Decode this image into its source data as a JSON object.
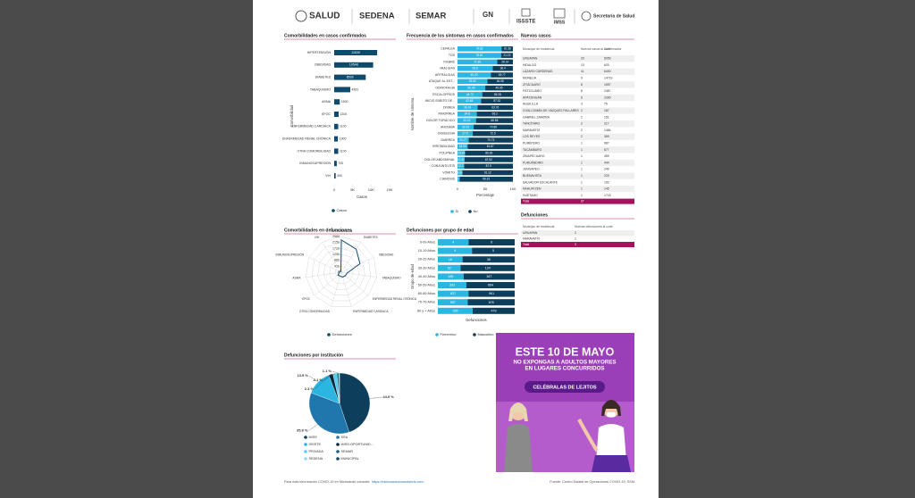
{
  "header": {
    "logos": [
      "SALUD",
      "SEDENA",
      "SEMAR",
      "GN",
      "ISSSTE",
      "IMSS",
      "Secretaría de Salud"
    ]
  },
  "chart_data": [
    {
      "type": "hbar",
      "title": "Comorbilidades en casos confirmados",
      "x_label": "Casos",
      "y_label": "Comorbilidad",
      "categories": [
        "HIPERTENSIÓN",
        "OBESIDAD",
        "DIABETES",
        "TABAQUISMO",
        "ASMA",
        "EPOC",
        "ENFERMEDAD CARDÍACA",
        "ENFERMEDAD RENAL CRÓNICA",
        "OTRA COMORBILIDAD",
        "INMUNOSUPRESIÓN",
        "VIH"
      ],
      "series": [
        {
          "name": "Casos",
          "color": "#0e4a6b",
          "values": [
            11639,
            10548,
            8539,
            4351,
            1500,
            1200,
            1100,
            1000,
            1100,
            700,
            400
          ]
        }
      ],
      "xlim": [
        0,
        15000
      ],
      "xticks": [
        0,
        {
          "value": 5000,
          "label": "5K"
        },
        {
          "value": 10000,
          "label": "10K"
        },
        {
          "value": 15000,
          "label": "15K"
        }
      ]
    },
    {
      "type": "stacked_hbar",
      "title": "Frecuencia de los síntomas en casos confirmados",
      "x_label": "Porcentaje",
      "y_label": "Nombre de síntoma",
      "categories": [
        "CEFALEA",
        "TOS",
        "FIEBRE",
        "MIALGIAS",
        "ARTRALGIAS",
        "ATAQUE AL EST...",
        "ODINOFAGIA",
        "ESCALOFRÍOS",
        "INICIO SÚBITO DE...",
        "DISNEA",
        "RINORREA",
        "DOLOR TORÁCICO",
        "ANOSMIA",
        "DISGEUSIA",
        "DIARREA",
        "IRRITABILIDAD",
        "POLIPNEA",
        "DOLOR ABDOMINAL",
        "CONJUNTIVITIS",
        "VÓMITO",
        "CIANOSIS"
      ],
      "series": [
        {
          "name": "Sí",
          "color": "#2bb6e2",
          "values": [
            79.62,
            78.81,
            71.81,
            63.6,
            60.23,
            53.92,
            50.05,
            44.72,
            42.68,
            36.24,
            34.8,
            33.42,
            29.15,
            27.5,
            20.27,
            18.33,
            13.64,
            12.48,
            12.1,
            8.88,
            3.77
          ]
        },
        {
          "name": "No",
          "color": "#0d3e5c",
          "values": [
            20.38,
            21.19,
            28.19,
            36.4,
            39.77,
            46.08,
            49.95,
            55.28,
            57.32,
            63.76,
            65.2,
            66.58,
            70.85,
            72.5,
            79.73,
            81.67,
            86.36,
            87.52,
            87.9,
            91.12,
            96.23
          ]
        }
      ],
      "xlim": [
        0,
        100
      ],
      "xticks": [
        0,
        50,
        100
      ]
    },
    {
      "type": "radar",
      "title": "Comorbilidades en defunciones",
      "categories": [
        "HIPERTENSIÓN",
        "DIABETES",
        "OBESIDAD",
        "TABAQUISMO",
        "ENFERMEDAD RENAL CRÓNICA",
        "ENFERMEDAD CARDÍACA",
        "OTRA COMORBILIDAD",
        "EPOC",
        "ASMA",
        "INMUNOSUPRESIÓN",
        "VIH"
      ],
      "series": [
        {
          "name": "Defunciones",
          "color": "#0e4a6b",
          "values": [
            2330,
            1980,
            1480,
            420,
            380,
            360,
            300,
            320,
            150,
            170,
            60
          ]
        }
      ],
      "rlim": [
        0,
        2580
      ],
      "rticks": [
        0,
        430,
        860,
        1290,
        1720,
        2150,
        2580
      ]
    },
    {
      "type": "stacked_hbar_share",
      "title": "Defunciones por grupo de edad",
      "x_label": "Defunciones",
      "y_label": "Grupo de edad",
      "categories": [
        "0-09 Años",
        "10-19 Años",
        "20-29 Años",
        "30-39 Años",
        "40-49 Años",
        "50-59 Años",
        "60-69 Años",
        "70-79 Años",
        "80 y + Años"
      ],
      "series": [
        {
          "name": "Femenino",
          "color": "#2bb6e2",
          "values": [
            4,
            4,
            18,
            52,
            185,
            393,
            637,
            557,
            396
          ]
        },
        {
          "name": "Masculino",
          "color": "#0d3e5c",
          "values": [
            6,
            5,
            38,
            124,
            367,
            664,
            961,
            876,
            479
          ]
        }
      ]
    },
    {
      "type": "pie",
      "title": "Defunciones por institución",
      "categories": [
        "IMSS",
        "SSA",
        "ISSSTE",
        "IMSS-OPORTUNID...",
        "PRIVADA",
        "SEMAR",
        "SEDENA",
        "MUNICIPAL"
      ],
      "values": [
        44.9,
        35.8,
        13.5,
        2.3,
        2.1,
        1.1,
        0.2,
        0.1
      ],
      "value_labels": [
        "44.9 %",
        "35.8 %",
        "13.5 %",
        "2.3 %",
        "2.1 %",
        "1.1 %",
        null,
        null
      ],
      "colors": [
        "#0d3e5c",
        "#1f77ad",
        "#2bb6e2",
        "#082a40",
        "#59cbea",
        "#176383",
        "#8fdcf2",
        "#114b69"
      ]
    }
  ],
  "tables": [
    {
      "title": "Nuevos casos",
      "columns": [
        "Municipio de residencia",
        "Nuevos casos al corte",
        "Confirmados"
      ],
      "rows": [
        [
          "URUAPAN",
          20,
          5059
        ],
        [
          "HIDALGO",
          13,
          620
        ],
        [
          "LÁZARO CÁRDENAS",
          11,
          6430
        ],
        [
          "MORELIA",
          9,
          14719
        ],
        [
          "ZITÁCUARO",
          8,
          1557
        ],
        [
          "PÁTZCUARO",
          8,
          2487
        ],
        [
          "APATZINGÁN",
          6,
          2390
        ],
        [
          "AGUILILLA",
          3,
          75
        ],
        [
          "COALCOMÁN DE VÁZQUEZ PALLARES",
          2,
          187
        ],
        [
          "GABRIEL ZAMORA",
          2,
          151
        ],
        [
          "TANCÍTARO",
          2,
          217
        ],
        [
          "MARAVATÍO",
          2,
          1484
        ],
        [
          "LOS REYES",
          2,
          359
        ],
        [
          "PURÉPERO",
          1,
          987
        ],
        [
          "TACÁMBARO",
          1,
          677
        ],
        [
          "ZINAPÉCUARO",
          1,
          459
        ],
        [
          "PURUÁNDIRO",
          1,
          444
        ],
        [
          "JUNGAPEO",
          1,
          249
        ],
        [
          "BUENAVISTA",
          1,
          229
        ],
        [
          "SALVADOR ESCALANTE",
          1,
          192
        ],
        [
          "NAHUATZEN",
          1,
          145
        ],
        [
          "HUETAMO",
          1,
          1718
        ]
      ],
      "total": {
        "label": "Total",
        "value": 97
      }
    },
    {
      "title": "Defunciones",
      "columns": [
        "Municipio de residencia",
        "Nuevas defunciones al corte"
      ],
      "rows": [
        [
          "URUAPAN",
          2
        ],
        [
          "MARAVATÍO",
          1
        ]
      ],
      "total": {
        "label": "Total",
        "value": 3
      }
    }
  ],
  "banner": {
    "title": "ESTE 10 DE MAYO",
    "line1": "NO EXPONGAS A ADULTOS MAYORES",
    "line2": "EN LUGARES CONCURRIDOS",
    "button": "CELÉBRALAS DE LEJITOS"
  },
  "footer": {
    "text": "Para más información COVID-19 en Michoacán consulte:",
    "link": "https://michoacancoronavirus.com",
    "source": "Fuente: Centro Estatal de Operaciones COVID-19, SSM"
  }
}
